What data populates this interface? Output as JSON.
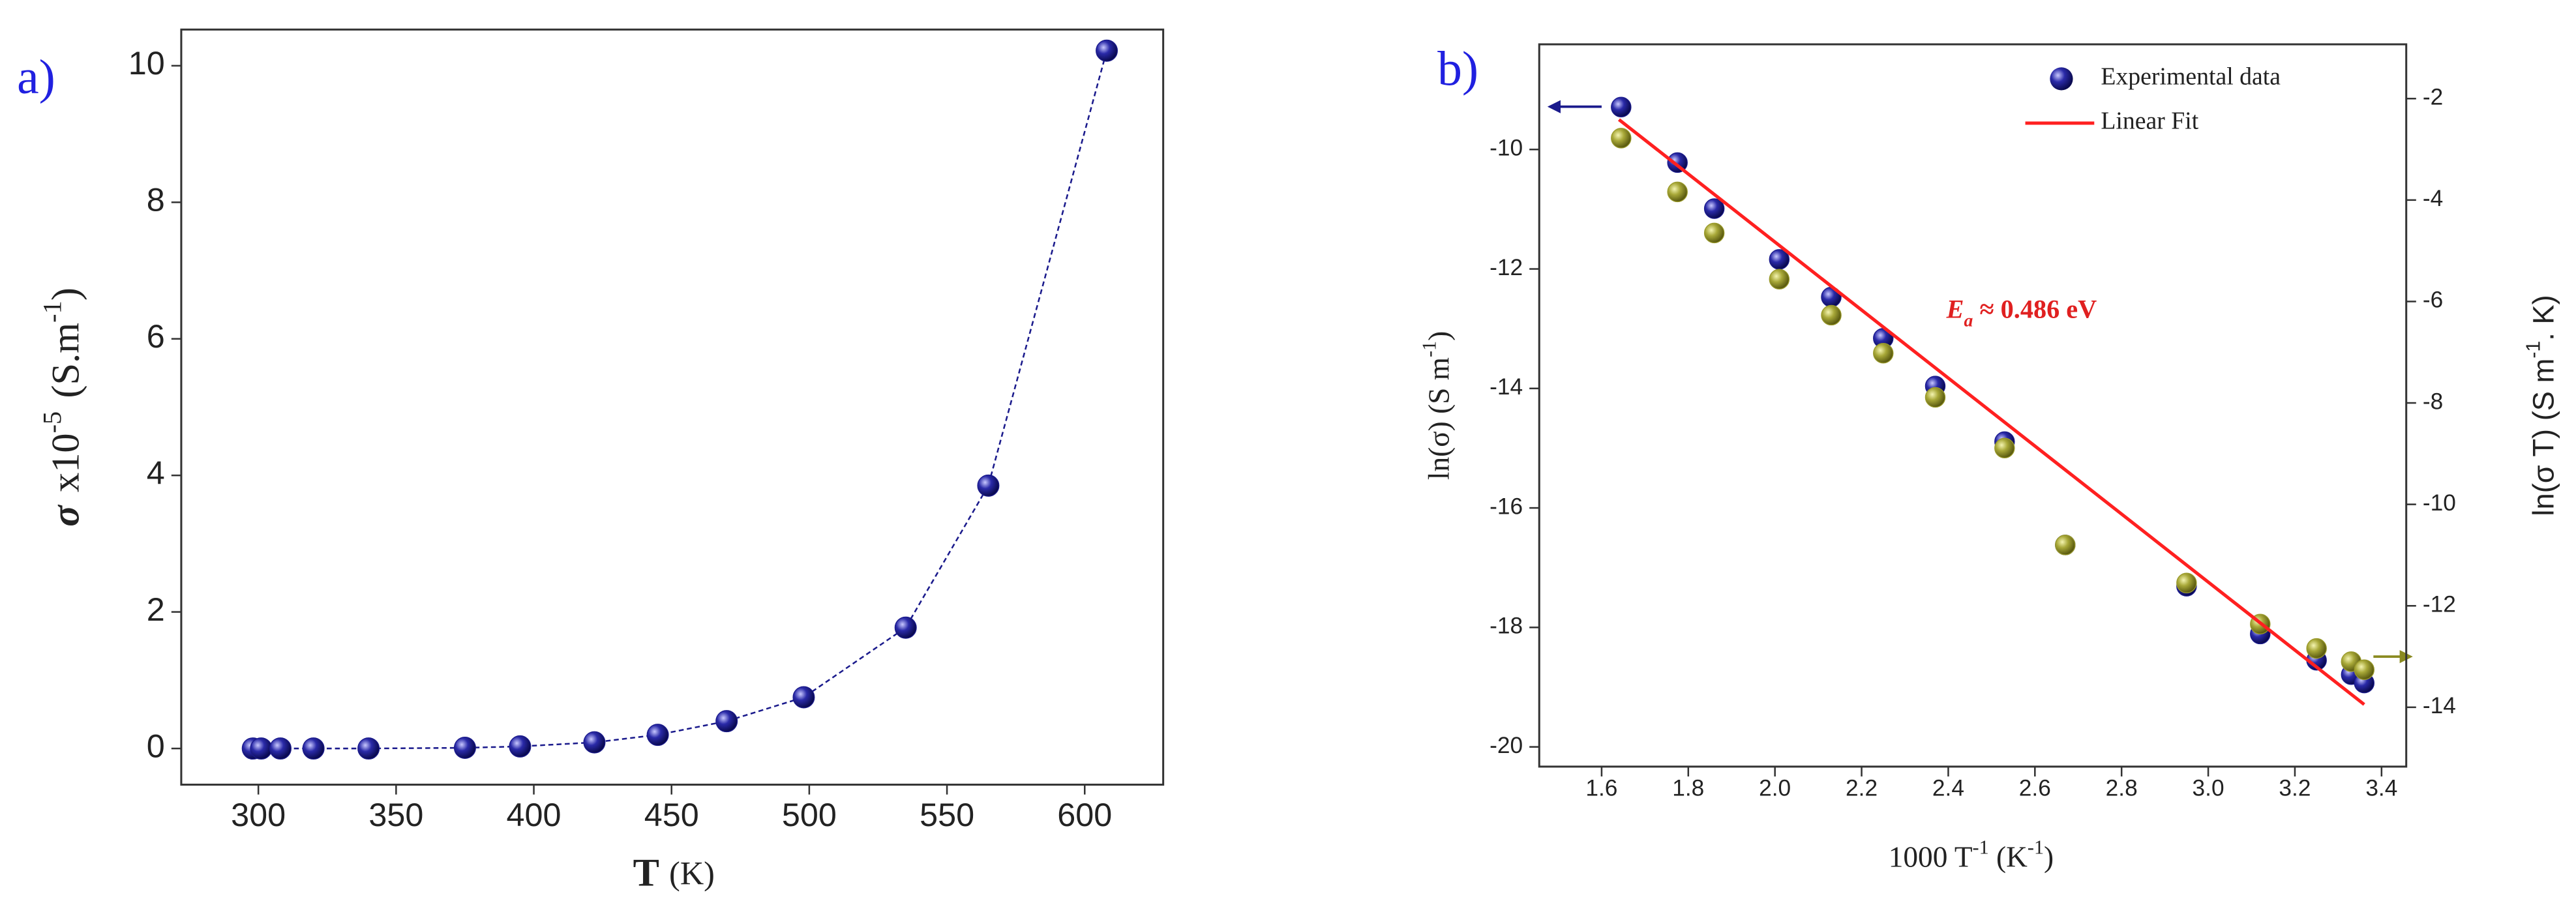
{
  "chart_data": [
    {
      "type": "scatter",
      "panel_label": "a)",
      "x_label": {
        "symbol": "T",
        "unit": "(K)"
      },
      "y_label": {
        "symbol": "σ",
        "text": "x10",
        "exp": "-5",
        "unit": "(S.m",
        "unit_exp": "-1",
        "close": ")"
      },
      "xlim": [
        272,
        628.5
      ],
      "ylim": [
        -0.53,
        10.53
      ],
      "xticks": [
        300,
        350,
        400,
        450,
        500,
        550,
        600
      ],
      "yticks": [
        0,
        2,
        4,
        6,
        8,
        10
      ],
      "series": [
        {
          "color": "#1a1a8c",
          "line": "dashed",
          "x": [
            298,
            301,
            308,
            320,
            340,
            375,
            395,
            422,
            445,
            470,
            498,
            535,
            565,
            608
          ],
          "values": [
            0,
            0,
            0,
            0,
            0,
            0.01,
            0.03,
            0.09,
            0.2,
            0.4,
            0.75,
            1.77,
            3.85,
            10.22
          ]
        }
      ]
    },
    {
      "type": "scatter",
      "panel_label": "b)",
      "x_label": {
        "text": "1000 T",
        "exp": "-1",
        "unit": " (K",
        "unit_exp": "-1",
        "close": ")"
      },
      "y_label": {
        "text": "ln(σ) (S m",
        "exp": "-1",
        "close": ")"
      },
      "y2_label": {
        "text": "ln(σ T) (S m",
        "exp": "-1",
        "close": ". K)"
      },
      "annotation": {
        "symbol": "E",
        "sub": "a",
        "text": " ≈ 0.486 eV"
      },
      "legend": "upper right",
      "xlim": [
        1.456,
        3.457
      ],
      "ylim": [
        -20.33,
        -8.24
      ],
      "y2lim": [
        -15.17,
        -0.93
      ],
      "xticks": [
        1.6,
        1.8,
        {
          "value": 2.0,
          "label": "2.0"
        },
        2.2,
        2.4,
        2.6,
        2.8,
        {
          "value": 3.0,
          "label": "3.0"
        },
        3.2,
        3.4
      ],
      "yticks": [
        -20,
        -18,
        -16,
        -14,
        -12,
        -10
      ],
      "y2ticks": [
        -14,
        -12,
        -10,
        -8,
        -6,
        -4,
        -2
      ],
      "series": [
        {
          "name": "Experimental data",
          "color": "#1a1a8c",
          "x": [
            1.645,
            1.775,
            1.86,
            2.01,
            2.13,
            2.25,
            2.37,
            2.53,
            2.67,
            2.95,
            3.12,
            3.25,
            3.33,
            3.36
          ],
          "values": [
            -9.29,
            -10.22,
            -10.99,
            -11.84,
            -12.47,
            -13.16,
            -13.96,
            -14.89,
            -16.62,
            -17.31,
            -18.11,
            -18.55,
            -18.79,
            -18.93
          ]
        },
        {
          "color": "#9a9a2a",
          "axis": "y2",
          "x": [
            1.645,
            1.775,
            1.86,
            2.01,
            2.13,
            2.25,
            2.37,
            2.53,
            2.67,
            2.95,
            3.12,
            3.25,
            3.33,
            3.36
          ],
          "values": [
            -2.78,
            -3.84,
            -4.65,
            -5.56,
            -6.27,
            -7.02,
            -7.89,
            -8.89,
            -10.8,
            -11.55,
            -12.36,
            -12.84,
            -13.1,
            -13.26
          ]
        },
        {
          "name": "Linear Fit",
          "color": "#ff2020",
          "type": "line",
          "x": [
            1.64,
            3.36
          ],
          "values": [
            -9.5,
            -19.29
          ]
        }
      ]
    }
  ]
}
